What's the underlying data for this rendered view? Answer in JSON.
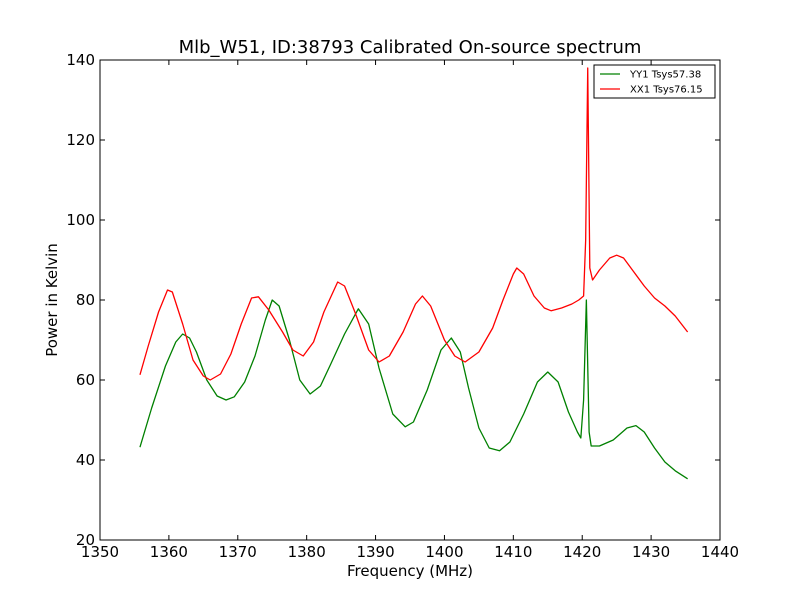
{
  "chart_data": {
    "type": "line",
    "title": "Mlb_W51, ID:38793 Calibrated On-source spectrum",
    "xlabel": "Frequency (MHz)",
    "ylabel": "Power in Kelvin",
    "xlim": [
      1350,
      1440
    ],
    "ylim": [
      20,
      140
    ],
    "xticks": [
      1350,
      1360,
      1370,
      1380,
      1390,
      1400,
      1410,
      1420,
      1430,
      1440
    ],
    "yticks": [
      20,
      40,
      60,
      80,
      100,
      120,
      140
    ],
    "grid": false,
    "legend_position": "top-right",
    "series": [
      {
        "name": "YY1 Tsys57.38",
        "color": "#008000",
        "points": [
          [
            1355.8,
            43.2
          ],
          [
            1357.5,
            53.0
          ],
          [
            1359.5,
            63.5
          ],
          [
            1361.0,
            69.5
          ],
          [
            1362.0,
            71.5
          ],
          [
            1363.0,
            70.5
          ],
          [
            1364.0,
            67.0
          ],
          [
            1365.5,
            60.0
          ],
          [
            1367.0,
            56.0
          ],
          [
            1368.3,
            55.0
          ],
          [
            1369.5,
            55.8
          ],
          [
            1371.0,
            59.5
          ],
          [
            1372.5,
            66.0
          ],
          [
            1374.0,
            75.0
          ],
          [
            1375.0,
            80.0
          ],
          [
            1376.0,
            78.5
          ],
          [
            1377.5,
            70.0
          ],
          [
            1379.0,
            60.0
          ],
          [
            1380.5,
            56.5
          ],
          [
            1382.0,
            58.5
          ],
          [
            1383.5,
            64.0
          ],
          [
            1385.5,
            71.5
          ],
          [
            1387.5,
            77.8
          ],
          [
            1389.0,
            74.0
          ],
          [
            1390.5,
            63.0
          ],
          [
            1392.5,
            51.5
          ],
          [
            1394.3,
            48.3
          ],
          [
            1395.5,
            49.5
          ],
          [
            1397.5,
            57.5
          ],
          [
            1399.5,
            67.5
          ],
          [
            1401.0,
            70.5
          ],
          [
            1402.3,
            67.0
          ],
          [
            1403.5,
            58.0
          ],
          [
            1405.0,
            48.0
          ],
          [
            1406.5,
            43.0
          ],
          [
            1408.0,
            42.3
          ],
          [
            1409.5,
            44.5
          ],
          [
            1411.5,
            51.5
          ],
          [
            1413.5,
            59.5
          ],
          [
            1415.0,
            62.0
          ],
          [
            1416.5,
            59.5
          ],
          [
            1418.0,
            52.0
          ],
          [
            1419.3,
            47.0
          ],
          [
            1419.8,
            45.5
          ],
          [
            1420.2,
            55.0
          ],
          [
            1420.6,
            80.0
          ],
          [
            1421.0,
            47.0
          ],
          [
            1421.3,
            43.5
          ],
          [
            1422.5,
            43.5
          ],
          [
            1424.5,
            45.0
          ],
          [
            1426.5,
            48.0
          ],
          [
            1427.8,
            48.6
          ],
          [
            1429.0,
            47.0
          ],
          [
            1430.5,
            43.0
          ],
          [
            1432.0,
            39.5
          ],
          [
            1433.5,
            37.3
          ],
          [
            1435.3,
            35.3
          ]
        ]
      },
      {
        "name": "XX1 Tsys76.15",
        "color": "#ff0000",
        "points": [
          [
            1355.8,
            61.3
          ],
          [
            1357.0,
            68.5
          ],
          [
            1358.5,
            77.0
          ],
          [
            1359.8,
            82.5
          ],
          [
            1360.5,
            82.0
          ],
          [
            1362.0,
            74.0
          ],
          [
            1363.5,
            65.0
          ],
          [
            1365.0,
            61.0
          ],
          [
            1366.0,
            60.0
          ],
          [
            1367.5,
            61.5
          ],
          [
            1369.0,
            66.5
          ],
          [
            1370.5,
            74.0
          ],
          [
            1372.0,
            80.5
          ],
          [
            1373.0,
            80.8
          ],
          [
            1374.5,
            77.5
          ],
          [
            1376.5,
            72.0
          ],
          [
            1378.0,
            67.5
          ],
          [
            1379.5,
            66.0
          ],
          [
            1381.0,
            69.5
          ],
          [
            1382.5,
            77.0
          ],
          [
            1384.5,
            84.5
          ],
          [
            1385.5,
            83.5
          ],
          [
            1387.0,
            77.0
          ],
          [
            1389.0,
            67.5
          ],
          [
            1390.5,
            64.5
          ],
          [
            1392.0,
            66.0
          ],
          [
            1394.0,
            72.0
          ],
          [
            1395.8,
            79.0
          ],
          [
            1396.8,
            81.0
          ],
          [
            1398.0,
            78.5
          ],
          [
            1400.0,
            70.0
          ],
          [
            1401.5,
            66.0
          ],
          [
            1403.0,
            64.5
          ],
          [
            1405.0,
            67.0
          ],
          [
            1407.0,
            73.0
          ],
          [
            1408.5,
            80.0
          ],
          [
            1410.0,
            86.5
          ],
          [
            1410.5,
            88.0
          ],
          [
            1411.5,
            86.5
          ],
          [
            1413.0,
            81.0
          ],
          [
            1414.5,
            78.0
          ],
          [
            1415.5,
            77.3
          ],
          [
            1417.0,
            78.0
          ],
          [
            1418.5,
            79.0
          ],
          [
            1419.5,
            80.0
          ],
          [
            1420.2,
            81.0
          ],
          [
            1420.5,
            95.0
          ],
          [
            1420.8,
            138.0
          ],
          [
            1421.1,
            88.0
          ],
          [
            1421.5,
            85.0
          ],
          [
            1422.5,
            87.5
          ],
          [
            1424.0,
            90.5
          ],
          [
            1425.0,
            91.2
          ],
          [
            1426.0,
            90.5
          ],
          [
            1427.5,
            87.0
          ],
          [
            1429.0,
            83.5
          ],
          [
            1430.5,
            80.5
          ],
          [
            1432.0,
            78.5
          ],
          [
            1433.5,
            76.0
          ],
          [
            1435.3,
            72.0
          ]
        ]
      }
    ]
  }
}
